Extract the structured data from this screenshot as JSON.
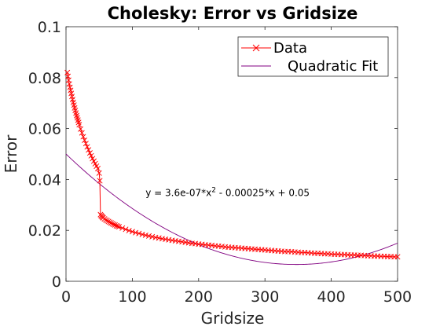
{
  "chart_data": {
    "type": "line",
    "title": "Cholesky: Error vs Gridsize",
    "xlabel": "Gridsize",
    "ylabel": "Error",
    "xlim": [
      0,
      500
    ],
    "ylim": [
      0,
      0.1
    ],
    "xticks": [
      "0",
      "100",
      "200",
      "300",
      "400",
      "500"
    ],
    "yticks": [
      "0",
      "0.02",
      "0.04",
      "0.06",
      "0.08",
      "0.1"
    ],
    "grid": false,
    "legend_position": "top-right",
    "annotation": {
      "text_prefix": "y = 3.6e-07*x",
      "text_sup": "2",
      "text_suffix": " - 0.00025*x + 0.05",
      "at": [
        120,
        0.0335
      ]
    },
    "series": [
      {
        "name": "Data",
        "color": "#ff0000",
        "marker": "x",
        "x": [
          2,
          3,
          4,
          5,
          6,
          7,
          8,
          9,
          10,
          11,
          12,
          13,
          14,
          15,
          16,
          17,
          18,
          19,
          20,
          22,
          24,
          26,
          28,
          30,
          32,
          34,
          36,
          38,
          40,
          42,
          44,
          46,
          48,
          50,
          51,
          52,
          53,
          54,
          55,
          56,
          58,
          60,
          62,
          64,
          66,
          68,
          70,
          72,
          74,
          76,
          78,
          80,
          85,
          90,
          95,
          100,
          105,
          110,
          115,
          120,
          125,
          130,
          135,
          140,
          145,
          150,
          155,
          160,
          165,
          170,
          175,
          180,
          185,
          190,
          195,
          200,
          205,
          210,
          215,
          220,
          225,
          230,
          235,
          240,
          245,
          250,
          255,
          260,
          265,
          270,
          275,
          280,
          285,
          290,
          295,
          300,
          305,
          310,
          315,
          320,
          325,
          330,
          335,
          340,
          345,
          350,
          355,
          360,
          365,
          370,
          375,
          380,
          385,
          390,
          395,
          400,
          405,
          410,
          415,
          420,
          425,
          430,
          435,
          440,
          445,
          450,
          455,
          460,
          465,
          470,
          475,
          480,
          485,
          490,
          495,
          500
        ],
        "y": [
          0.082,
          0.0805,
          0.079,
          0.0775,
          0.0762,
          0.075,
          0.0738,
          0.0726,
          0.0714,
          0.0703,
          0.0692,
          0.0681,
          0.0671,
          0.0661,
          0.0651,
          0.0642,
          0.0633,
          0.0624,
          0.0615,
          0.0598,
          0.0583,
          0.0568,
          0.0554,
          0.0541,
          0.0528,
          0.0516,
          0.0504,
          0.0493,
          0.0482,
          0.0472,
          0.0462,
          0.0452,
          0.0443,
          0.0425,
          0.0395,
          0.0262,
          0.0258,
          0.0255,
          0.0252,
          0.0249,
          0.0245,
          0.0241,
          0.0238,
          0.0235,
          0.0232,
          0.0229,
          0.0226,
          0.0223,
          0.0221,
          0.0218,
          0.0216,
          0.0214,
          0.0209,
          0.0204,
          0.0199,
          0.0195,
          0.0191,
          0.0188,
          0.0184,
          0.0181,
          0.0178,
          0.0175,
          0.0172,
          0.017,
          0.0167,
          0.0165,
          0.0163,
          0.0161,
          0.0159,
          0.0157,
          0.0155,
          0.0153,
          0.0151,
          0.0149,
          0.0148,
          0.0146,
          0.0145,
          0.0143,
          0.0142,
          0.0141,
          0.0139,
          0.0138,
          0.0137,
          0.0135,
          0.0134,
          0.0133,
          0.0132,
          0.0131,
          0.013,
          0.0129,
          0.0128,
          0.0127,
          0.0126,
          0.0125,
          0.0124,
          0.0123,
          0.0122,
          0.0121,
          0.012,
          0.0119,
          0.0118,
          0.0117,
          0.0117,
          0.0116,
          0.0115,
          0.0114,
          0.0113,
          0.0113,
          0.0112,
          0.0111,
          0.011,
          0.011,
          0.0109,
          0.0108,
          0.0108,
          0.0107,
          0.0106,
          0.0106,
          0.0105,
          0.0105,
          0.0104,
          0.0103,
          0.0103,
          0.0102,
          0.0102,
          0.0101,
          0.01,
          0.01,
          0.0099,
          0.0099,
          0.0098,
          0.0098,
          0.0097,
          0.0097,
          0.0096,
          0.0096
        ]
      },
      {
        "name": "Quadratic Fit",
        "color": "#800080",
        "marker": "none",
        "coefficients": [
          3.6e-07,
          -0.00025,
          0.05
        ]
      }
    ]
  }
}
